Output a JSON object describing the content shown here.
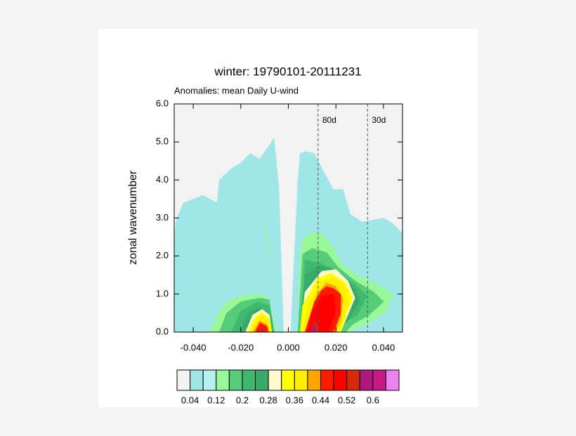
{
  "chart_data": {
    "type": "contour",
    "title": "winter: 19790101-20111231",
    "subtitle": "Anomalies: mean Daily U-wind",
    "ylabel": "zonal wavenumber",
    "xlim": [
      -0.048,
      0.048
    ],
    "ylim": [
      0,
      6
    ],
    "xticks": [
      {
        "value": -0.04,
        "label": "-0.040"
      },
      {
        "value": -0.02,
        "label": "-0.020"
      },
      {
        "value": 0,
        "label": "0.000"
      },
      {
        "value": 0.02,
        "label": "0.020"
      },
      {
        "value": 0.04,
        "label": "0.040"
      }
    ],
    "yticks": [
      {
        "value": 0,
        "label": "0.0"
      },
      {
        "value": 1,
        "label": "1.0"
      },
      {
        "value": 2,
        "label": "2.0"
      },
      {
        "value": 3,
        "label": "3.0"
      },
      {
        "value": 4,
        "label": "4.0"
      },
      {
        "value": 5,
        "label": "5.0"
      },
      {
        "value": 6,
        "label": "6.0"
      }
    ],
    "reference_lines": [
      {
        "x": 0.0125,
        "label": "80d"
      },
      {
        "x": 0.0333,
        "label": "30d"
      }
    ],
    "colorbar": {
      "levels": [
        0.04,
        0.08,
        0.12,
        0.16,
        0.2,
        0.24,
        0.28,
        0.32,
        0.36,
        0.4,
        0.44,
        0.48,
        0.52,
        0.56,
        0.6,
        0.64
      ],
      "colors": [
        "#f2f2f2",
        "#a0e6e6",
        "#b4f0f0",
        "#98f898",
        "#55cc77",
        "#40b870",
        "#3aaa6a",
        "#fffacd",
        "#ffff00",
        "#ffee00",
        "#ffa500",
        "#ff1a00",
        "#ff0000",
        "#d42a0a",
        "#b0187e",
        "#c8198a",
        "#ee82ee"
      ],
      "ticks": [
        0.04,
        0.12,
        0.2,
        0.28,
        0.36,
        0.44,
        0.52,
        0.6
      ]
    },
    "contours": [
      {
        "level": 0.04,
        "x": [
          -0.048,
          -0.048,
          -0.047,
          -0.044,
          -0.036,
          -0.03,
          -0.029,
          -0.024,
          -0.02,
          -0.016,
          -0.012,
          -0.006,
          -0.004,
          -0.002,
          0.001,
          0.004,
          0.005,
          0.007,
          0.011,
          0.015,
          0.019,
          0.023,
          0.026,
          0.031,
          0.036,
          0.04,
          0.044,
          0.048,
          0.048
        ],
        "y": [
          0,
          2.5,
          3.0,
          3.4,
          3.6,
          3.4,
          4.0,
          4.3,
          4.45,
          4.7,
          4.55,
          5.1,
          3.8,
          0,
          0,
          4.0,
          4.7,
          4.75,
          4.7,
          4.2,
          3.75,
          3.75,
          3.1,
          2.9,
          2.95,
          3.0,
          2.85,
          2.6,
          0
        ]
      },
      {
        "level": 0.12,
        "x": [
          -0.033,
          -0.03,
          -0.026,
          -0.02,
          -0.012,
          -0.009,
          -0.005
        ],
        "y": [
          0,
          0.45,
          0.8,
          0.95,
          1.0,
          0.95,
          0
        ]
      },
      {
        "level": 0.12,
        "x": [
          -0.0115,
          -0.01,
          -0.007,
          -0.0085
        ],
        "y": [
          3.1,
          2.7,
          1.8,
          2.4
        ]
      },
      {
        "level": 0.12,
        "x": [
          0.004,
          0.005,
          0.006,
          0.01,
          0.014,
          0.018,
          0.023,
          0.029,
          0.034,
          0.039,
          0.044,
          0.041,
          0.034,
          0.028,
          0.026
        ],
        "y": [
          0,
          2.0,
          2.45,
          2.6,
          2.6,
          2.3,
          1.75,
          1.5,
          1.35,
          1.2,
          1.0,
          0.55,
          0.25,
          0.1,
          0
        ]
      },
      {
        "level": 0.16,
        "x": [
          -0.029,
          -0.026,
          -0.02,
          -0.012,
          -0.008,
          -0.006
        ],
        "y": [
          0,
          0.5,
          0.8,
          0.9,
          0.85,
          0
        ]
      },
      {
        "level": 0.16,
        "x": [
          0.004,
          0.006,
          0.01,
          0.016,
          0.021,
          0.028,
          0.036,
          0.04,
          0.034,
          0.027,
          0.024
        ],
        "y": [
          0,
          2.05,
          2.2,
          2.1,
          1.7,
          1.35,
          1.05,
          0.8,
          0.45,
          0.2,
          0
        ]
      },
      {
        "level": 0.2,
        "x": [
          -0.024,
          -0.02,
          -0.013,
          -0.008,
          -0.006
        ],
        "y": [
          0,
          0.55,
          0.8,
          0.7,
          0
        ]
      },
      {
        "level": 0.2,
        "x": [
          0.005,
          0.007,
          0.014,
          0.022,
          0.029,
          0.033,
          0.029,
          0.022,
          0.02
        ],
        "y": [
          0,
          1.9,
          1.8,
          1.55,
          1.2,
          0.95,
          0.45,
          0.2,
          0
        ]
      },
      {
        "level": 0.24,
        "x": [
          -0.02,
          -0.017,
          -0.013,
          -0.009,
          -0.007
        ],
        "y": [
          0,
          0.5,
          0.65,
          0.55,
          0
        ]
      },
      {
        "level": 0.24,
        "x": [
          0.005,
          0.007,
          0.013,
          0.02,
          0.028,
          0.03,
          0.025,
          0.02
        ],
        "y": [
          0,
          1.5,
          1.75,
          1.65,
          1.15,
          0.8,
          0.3,
          0
        ]
      },
      {
        "level": 0.28,
        "x": [
          -0.018,
          -0.015,
          -0.011,
          -0.008,
          -0.007
        ],
        "y": [
          0,
          0.45,
          0.6,
          0.45,
          0
        ]
      },
      {
        "level": 0.28,
        "x": [
          0.005,
          0.007,
          0.014,
          0.02,
          0.025,
          0.028,
          0.024,
          0.022
        ],
        "y": [
          0,
          1.05,
          1.6,
          1.65,
          1.35,
          0.9,
          0.3,
          0
        ]
      },
      {
        "level": 0.32,
        "x": [
          -0.017,
          -0.014,
          -0.011,
          -0.008,
          -0.007
        ],
        "y": [
          0,
          0.4,
          0.52,
          0.35,
          0
        ]
      },
      {
        "level": 0.32,
        "x": [
          0.005,
          0.006,
          0.012,
          0.018,
          0.024,
          0.027,
          0.024,
          0.022
        ],
        "y": [
          0,
          0.7,
          1.4,
          1.55,
          1.3,
          0.9,
          0.4,
          0
        ]
      },
      {
        "level": 0.36,
        "x": [
          -0.016,
          -0.013,
          -0.011,
          -0.008,
          -0.0075
        ],
        "y": [
          0,
          0.35,
          0.45,
          0.3,
          0
        ]
      },
      {
        "level": 0.36,
        "x": [
          0.006,
          0.008,
          0.013,
          0.019,
          0.024,
          0.025,
          0.023,
          0.021
        ],
        "y": [
          0,
          0.7,
          1.3,
          1.45,
          1.2,
          0.8,
          0.3,
          0
        ]
      },
      {
        "level": 0.4,
        "x": [
          -0.015,
          -0.012,
          -0.009,
          -0.008
        ],
        "y": [
          0,
          0.3,
          0.2,
          0
        ]
      },
      {
        "level": 0.4,
        "x": [
          0.007,
          0.012,
          0.016,
          0.02,
          0.023,
          0.022,
          0.02
        ],
        "y": [
          0,
          1.0,
          1.3,
          1.2,
          0.9,
          0.4,
          0
        ]
      },
      {
        "level": 0.44,
        "x": [
          -0.014,
          -0.012,
          -0.009,
          -0.0085
        ],
        "y": [
          0,
          0.25,
          0.15,
          0
        ]
      },
      {
        "level": 0.44,
        "x": [
          0.007,
          0.011,
          0.014,
          0.016,
          0.019,
          0.022,
          0.022,
          0.019
        ],
        "y": [
          0,
          0.8,
          1.1,
          1.2,
          1.15,
          1.0,
          0.5,
          0
        ]
      },
      {
        "level": 0.48,
        "x": [
          0.008,
          0.01,
          0.014,
          0.019,
          0.02,
          0.017
        ],
        "y": [
          0,
          0.5,
          0.95,
          1.0,
          0.6,
          0
        ]
      },
      {
        "level": 0.52,
        "x": [
          -0.012,
          -0.011,
          -0.01
        ],
        "y": [
          0,
          0.12,
          0
        ]
      },
      {
        "level": 0.52,
        "x": [
          0.009,
          0.011,
          0.013,
          0.012
        ],
        "y": [
          0,
          0.3,
          0.15,
          0
        ]
      },
      {
        "level": 0.56,
        "x": [
          -0.0115,
          -0.011,
          -0.0105
        ],
        "y": [
          0,
          0.08,
          0
        ]
      },
      {
        "level": 0.56,
        "x": [
          0.009,
          0.011,
          0.012
        ],
        "y": [
          0,
          0.2,
          0
        ]
      }
    ]
  }
}
